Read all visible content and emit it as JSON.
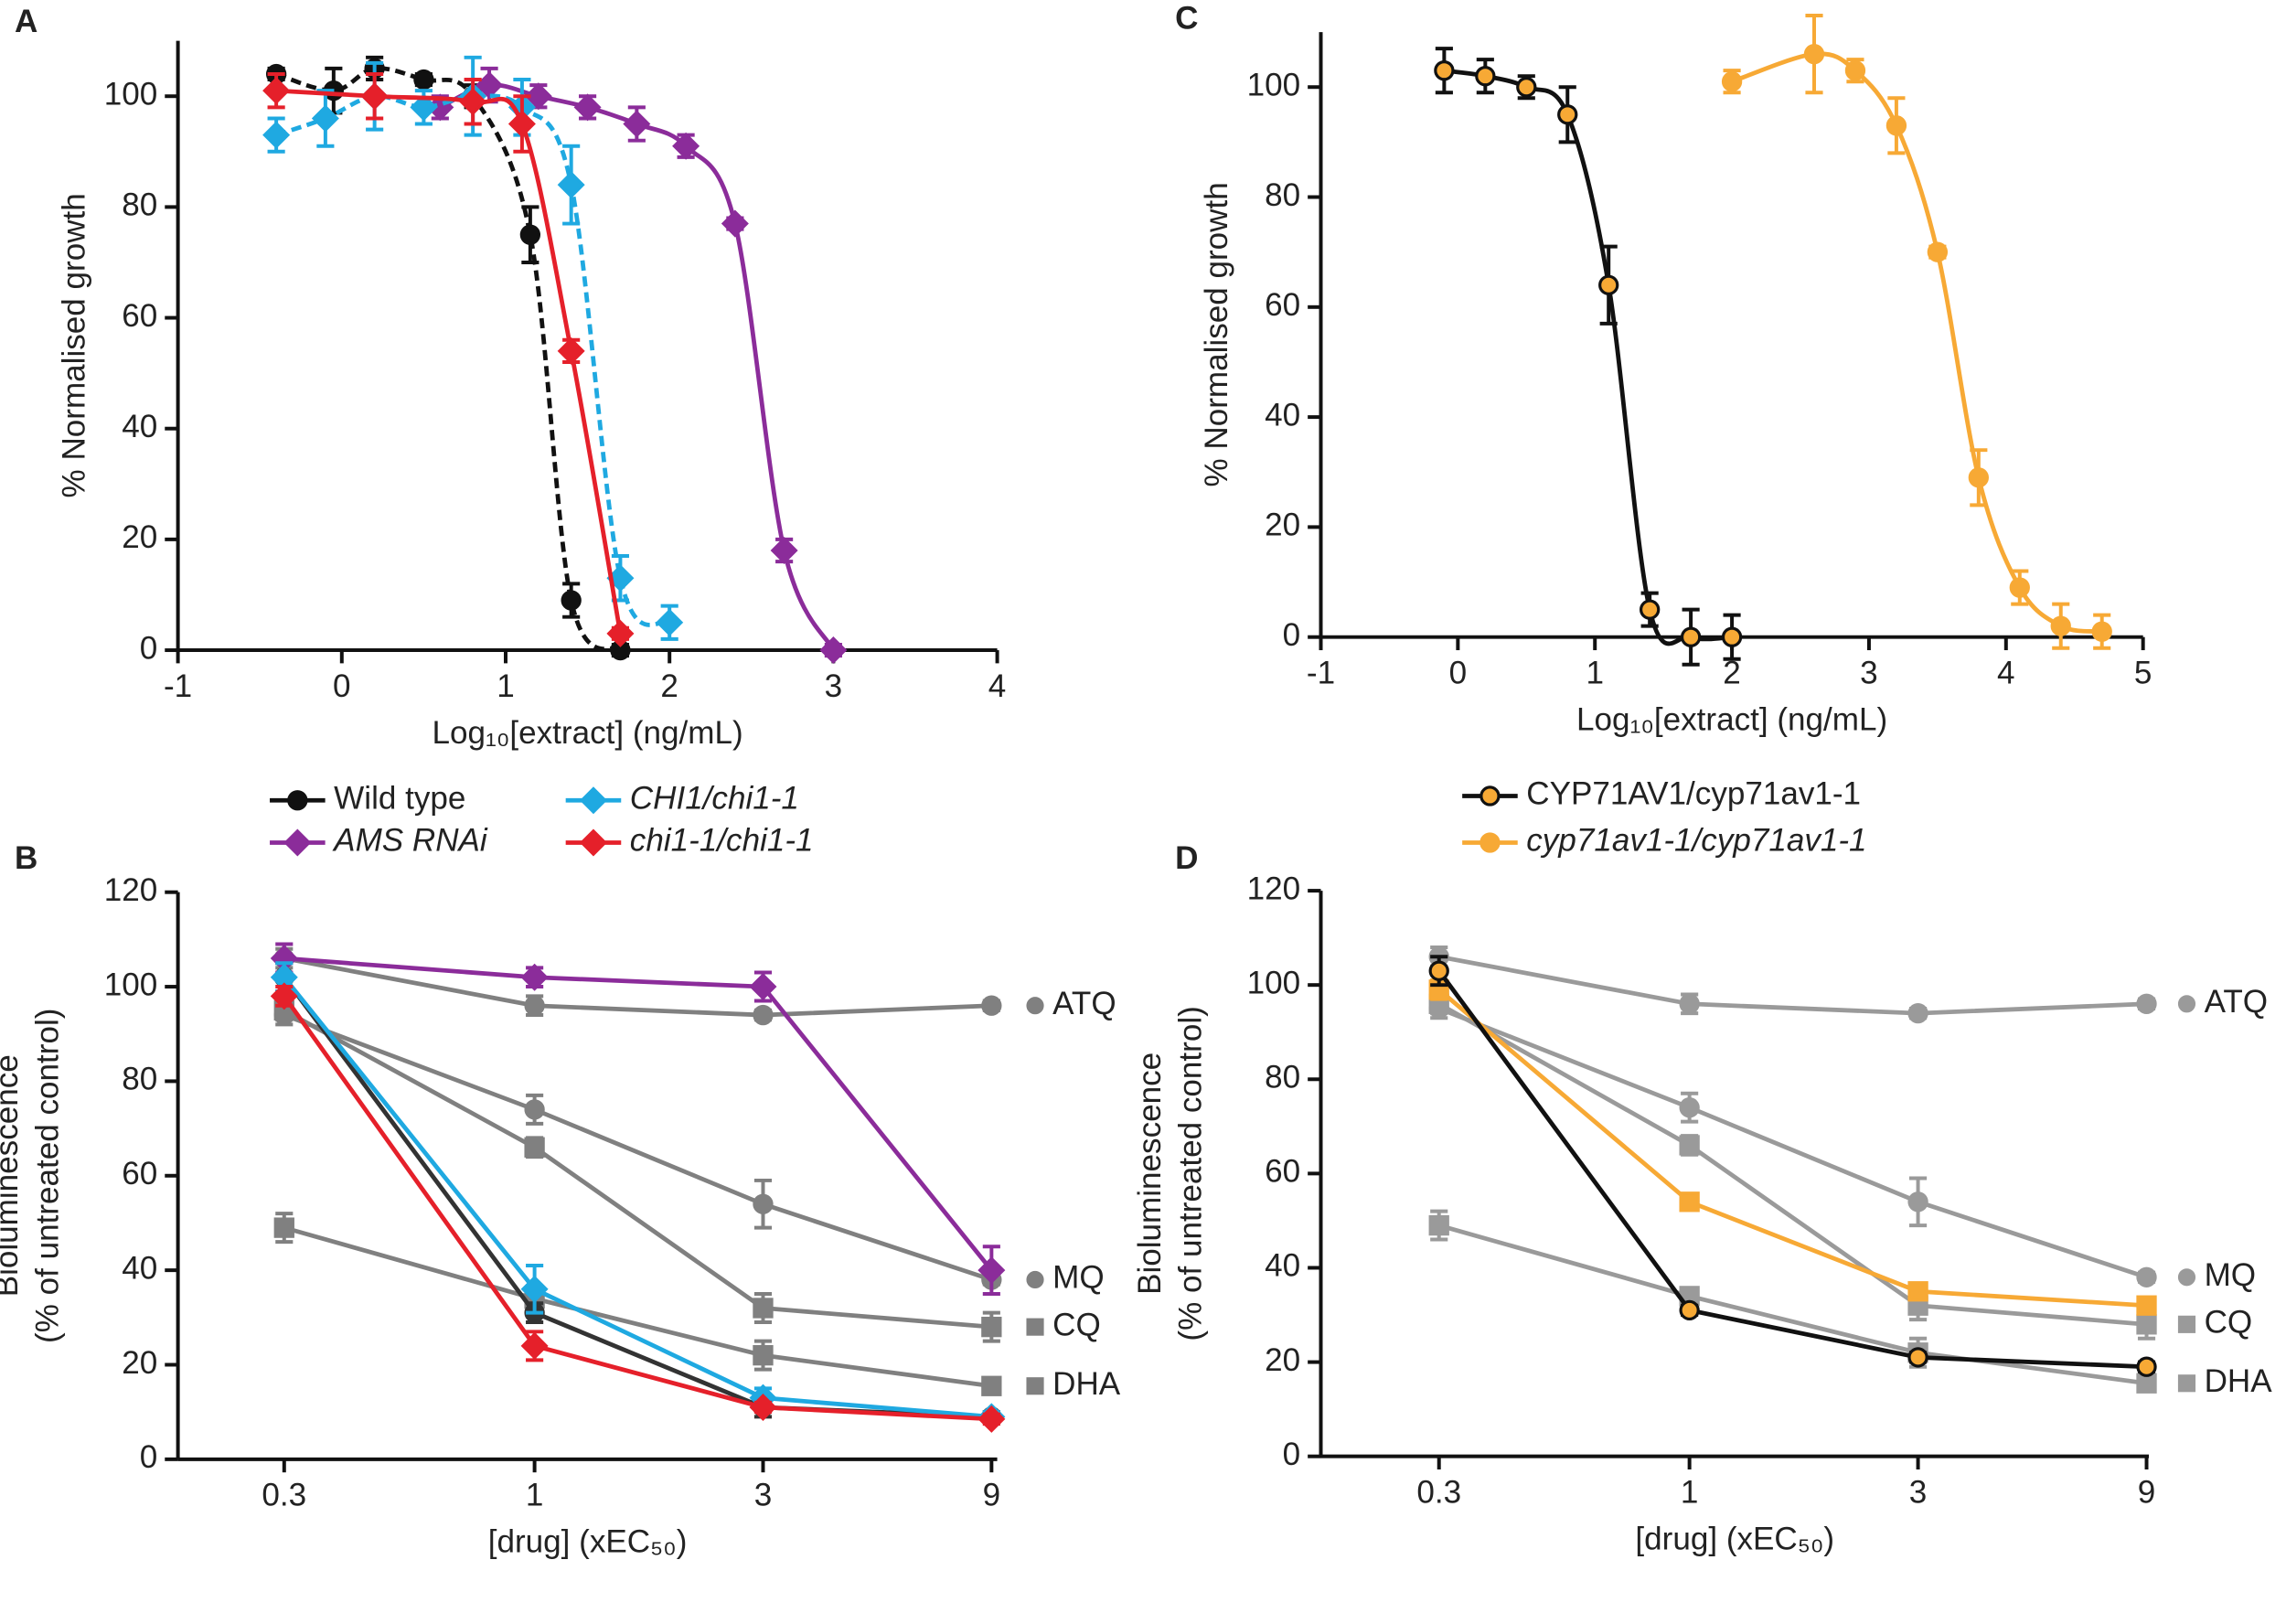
{
  "chart_data": [
    {
      "type": "line",
      "panel": "A",
      "xlabel": "Log₁₀[extract] (ng/mL)",
      "ylabel": [
        "% Normalised growth"
      ],
      "xlim": [
        -1,
        4
      ],
      "xticks": [
        -1,
        0,
        1,
        2,
        3,
        4
      ],
      "ylim": [
        0,
        110
      ],
      "yticks": [
        0,
        20,
        40,
        60,
        80,
        100
      ],
      "smooth": true,
      "series": [
        {
          "name": "Wild type",
          "color": "#111111",
          "marker": "circle",
          "linestyle": "dashed",
          "x": [
            -0.4,
            -0.05,
            0.2,
            0.5,
            0.8,
            1.15,
            1.4,
            1.7
          ],
          "values": [
            104,
            101,
            105,
            103,
            100,
            75,
            9,
            0
          ],
          "errors": [
            1,
            4,
            2,
            1,
            2,
            5,
            3,
            1
          ]
        },
        {
          "name": "AMS RNAi",
          "color": "#8b2c9a",
          "marker": "diamond",
          "linestyle": "solid",
          "italic": true,
          "x": [
            0.6,
            0.9,
            1.2,
            1.5,
            1.8,
            2.1,
            2.4,
            2.7,
            3.0
          ],
          "values": [
            98,
            102,
            100,
            98,
            95,
            91,
            77,
            18,
            0
          ],
          "errors": [
            2,
            3,
            2,
            2,
            3,
            2,
            1,
            2,
            1
          ]
        },
        {
          "name": "CHI1/chi1-1",
          "color": "#1fa9e1",
          "marker": "diamond",
          "linestyle": "dashed",
          "italic": true,
          "x": [
            -0.4,
            -0.1,
            0.2,
            0.5,
            0.8,
            1.1,
            1.4,
            1.7,
            2.0
          ],
          "values": [
            93,
            96,
            100,
            98,
            100,
            98,
            84,
            13,
            5
          ],
          "errors": [
            3,
            5,
            6,
            3,
            7,
            5,
            7,
            4,
            3
          ]
        },
        {
          "name": "chi1-1/chi1-1",
          "color": "#e5202a",
          "marker": "diamond",
          "linestyle": "solid",
          "italic": true,
          "x": [
            -0.4,
            0.2,
            0.8,
            1.1,
            1.4,
            1.7
          ],
          "values": [
            101,
            100,
            99,
            95,
            54,
            3
          ],
          "errors": [
            3,
            4,
            4,
            5,
            2,
            1
          ]
        }
      ]
    },
    {
      "type": "line",
      "panel": "B",
      "xlabel": "[drug] (xEC₅₀)",
      "ylabel": [
        "Bioluminescence",
        "(% of untreated control)"
      ],
      "log_x": true,
      "xlim": [
        0.18,
        9.25
      ],
      "xticks": [
        0.3,
        1,
        3,
        9
      ],
      "ylim": [
        0,
        120
      ],
      "yticks": [
        0,
        20,
        40,
        60,
        80,
        100,
        120
      ],
      "smooth": false,
      "series": [
        {
          "name": "ATQ",
          "color": "#808080",
          "marker": "circle",
          "x": [
            0.3,
            1,
            3,
            9
          ],
          "values": [
            106,
            96,
            94,
            96
          ],
          "errors": [
            2,
            2,
            1,
            1
          ]
        },
        {
          "name": "MQ",
          "color": "#808080",
          "marker": "circle",
          "x": [
            0.3,
            1,
            3,
            9
          ],
          "values": [
            94,
            74,
            54,
            38
          ],
          "errors": [
            2,
            3,
            5,
            1
          ]
        },
        {
          "name": "CQ",
          "color": "#808080",
          "marker": "square",
          "x": [
            0.3,
            1,
            3,
            9
          ],
          "values": [
            95,
            66,
            32,
            28
          ],
          "errors": [
            2,
            2,
            3,
            3
          ]
        },
        {
          "name": "DHA",
          "color": "#808080",
          "marker": "square",
          "x": [
            0.3,
            1,
            3,
            9
          ],
          "values": [
            49,
            34,
            22,
            15.5
          ],
          "errors": [
            3,
            1,
            3,
            1
          ]
        },
        {
          "color": "#333333",
          "marker": "circle",
          "x": [
            0.3,
            1,
            3,
            9
          ],
          "values": [
            102,
            31,
            11,
            9
          ],
          "errors": [
            3,
            2,
            2,
            1
          ]
        },
        {
          "color": "#8b2c9a",
          "marker": "diamond",
          "x": [
            0.3,
            1,
            3,
            9
          ],
          "values": [
            106,
            102,
            100,
            40
          ],
          "errors": [
            3,
            2,
            3,
            5
          ]
        },
        {
          "color": "#1fa9e1",
          "marker": "diamond",
          "x": [
            0.3,
            1,
            3,
            9
          ],
          "values": [
            102,
            36,
            13,
            9
          ],
          "errors": [
            3,
            5,
            2,
            1
          ]
        },
        {
          "color": "#e5202a",
          "marker": "diamond",
          "x": [
            0.3,
            1,
            3,
            9
          ],
          "values": [
            98,
            24,
            11,
            8.5
          ],
          "errors": [
            2,
            3,
            1,
            1
          ]
        }
      ]
    },
    {
      "type": "line",
      "panel": "C",
      "xlabel": "Log₁₀[extract] (ng/mL)",
      "ylabel": [
        "% Normalised growth"
      ],
      "xlim": [
        -1,
        5
      ],
      "xticks": [
        -1,
        0,
        1,
        2,
        3,
        4,
        5
      ],
      "ylim": [
        0,
        110
      ],
      "yticks": [
        0,
        20,
        40,
        60,
        80,
        100
      ],
      "smooth": true,
      "series": [
        {
          "name": "CYP71AV1/cyp71av1-1",
          "color": "#111111",
          "marker": "circle",
          "marker_fill": "#f7a935",
          "linestyle": "solid",
          "x": [
            -0.1,
            0.2,
            0.5,
            0.8,
            1.1,
            1.4,
            1.7,
            2.0
          ],
          "values": [
            103,
            102,
            100,
            95,
            64,
            5,
            0,
            0
          ],
          "errors": [
            4,
            3,
            2,
            5,
            7,
            3,
            5,
            4
          ]
        },
        {
          "name": "cyp71av1-1/cyp71av1-1",
          "color": "#f7a935",
          "marker": "circle",
          "linestyle": "solid",
          "italic": true,
          "x": [
            2.0,
            2.6,
            2.9,
            3.2,
            3.5,
            3.8,
            4.1,
            4.4,
            4.7
          ],
          "values": [
            101,
            106,
            103,
            93,
            70,
            29,
            9,
            2,
            1
          ],
          "errors": [
            2,
            7,
            2,
            5,
            1,
            5,
            3,
            4,
            3
          ]
        }
      ]
    },
    {
      "type": "line",
      "panel": "D",
      "xlabel": "[drug] (xEC₅₀)",
      "ylabel": [
        "Bioluminescence",
        "(% of untreated control)"
      ],
      "log_x": true,
      "xlim": [
        0.17,
        9.1
      ],
      "xticks": [
        0.3,
        1,
        3,
        9
      ],
      "ylim": [
        0,
        120
      ],
      "yticks": [
        0,
        20,
        40,
        60,
        80,
        100,
        120
      ],
      "smooth": false,
      "series": [
        {
          "name": "ATQ",
          "color": "#9a9a9a",
          "marker": "circle",
          "x": [
            0.3,
            1,
            3,
            9
          ],
          "values": [
            106,
            96,
            94,
            96
          ],
          "errors": [
            2,
            2,
            1,
            1
          ]
        },
        {
          "name": "MQ",
          "color": "#9a9a9a",
          "marker": "circle",
          "x": [
            0.3,
            1,
            3,
            9
          ],
          "values": [
            95,
            74,
            54,
            38
          ],
          "errors": [
            2,
            3,
            5,
            1
          ]
        },
        {
          "name": "CQ",
          "color": "#9a9a9a",
          "marker": "square",
          "x": [
            0.3,
            1,
            3,
            9
          ],
          "values": [
            96,
            66,
            32,
            28
          ],
          "errors": [
            2,
            2,
            3,
            3
          ]
        },
        {
          "name": "DHA",
          "color": "#9a9a9a",
          "marker": "square",
          "x": [
            0.3,
            1,
            3,
            9
          ],
          "values": [
            49,
            34,
            22,
            15.5
          ],
          "errors": [
            3,
            1,
            3,
            1
          ]
        },
        {
          "color": "#f7a935",
          "marker": "square",
          "x": [
            0.3,
            1,
            3,
            9
          ],
          "values": [
            99,
            54,
            35,
            32
          ],
          "errors": [
            2,
            1,
            1,
            1
          ]
        },
        {
          "color": "#111111",
          "marker": "circle",
          "marker_fill": "#f7a935",
          "x": [
            0.3,
            1,
            3,
            9
          ],
          "values": [
            103,
            31,
            21,
            19
          ],
          "errors": [
            3,
            1,
            1,
            1
          ]
        }
      ]
    }
  ]
}
